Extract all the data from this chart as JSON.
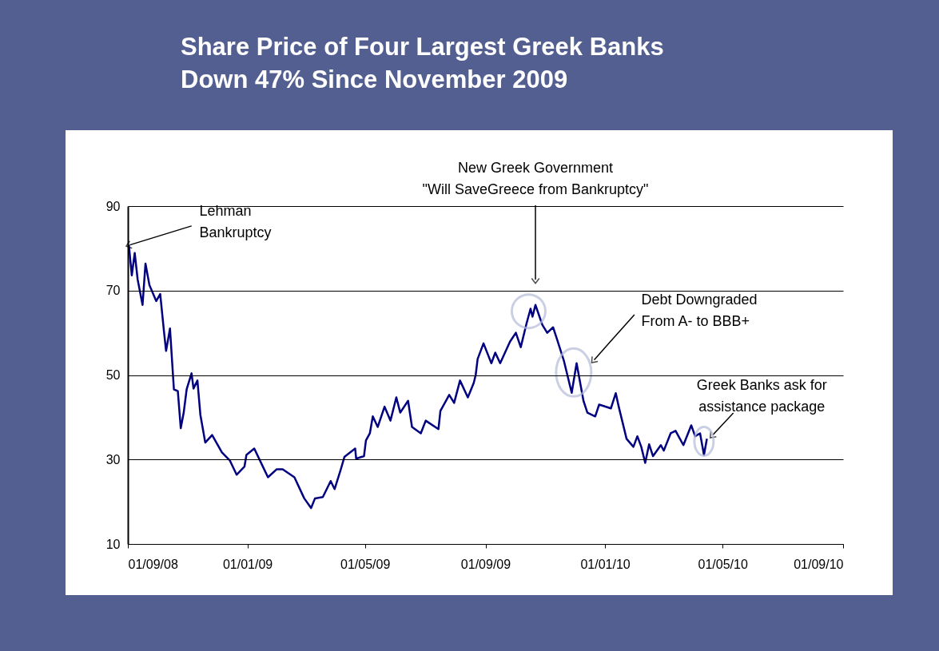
{
  "chart_data": {
    "type": "line",
    "title": "Share Price of Four Largest Greek Banks\nDown 47% Since November 2009",
    "x": [
      "2008-09-02",
      "2008-09-05",
      "2008-09-08",
      "2008-09-11",
      "2008-09-16",
      "2008-09-19",
      "2008-09-23",
      "2008-09-30",
      "2008-10-04",
      "2008-10-08",
      "2008-10-10",
      "2008-10-14",
      "2008-10-18",
      "2008-10-22",
      "2008-10-25",
      "2008-10-28",
      "2008-10-31",
      "2008-11-05",
      "2008-11-07",
      "2008-11-11",
      "2008-11-14",
      "2008-11-19",
      "2008-11-26",
      "2008-12-06",
      "2008-12-14",
      "2008-12-21",
      "2008-12-29",
      "2008-12-31",
      "2009-01-08",
      "2009-01-16",
      "2009-01-22",
      "2009-01-31",
      "2009-02-06",
      "2009-02-18",
      "2009-02-28",
      "2009-03-07",
      "2009-03-11",
      "2009-03-19",
      "2009-03-27",
      "2009-03-31",
      "2009-04-06",
      "2009-04-10",
      "2009-04-21",
      "2009-04-22",
      "2009-04-30",
      "2009-05-02",
      "2009-05-06",
      "2009-05-09",
      "2009-05-14",
      "2009-05-21",
      "2009-05-27",
      "2009-06-02",
      "2009-06-06",
      "2009-06-14",
      "2009-06-18",
      "2009-06-27",
      "2009-07-02",
      "2009-07-15",
      "2009-07-17",
      "2009-07-26",
      "2009-07-31",
      "2009-08-06",
      "2009-08-14",
      "2009-08-20",
      "2009-08-22",
      "2009-08-24",
      "2009-08-30",
      "2009-09-07",
      "2009-09-11",
      "2009-09-16",
      "2009-09-26",
      "2009-10-02",
      "2009-10-07",
      "2009-10-13",
      "2009-10-17",
      "2009-10-19",
      "2009-10-22",
      "2009-10-29",
      "2009-11-03",
      "2009-11-09",
      "2009-11-13",
      "2009-11-20",
      "2009-11-28",
      "2009-12-03",
      "2009-12-10",
      "2009-12-14",
      "2009-12-22",
      "2009-12-26",
      "2010-01-07",
      "2010-01-12",
      "2010-01-15",
      "2010-01-23",
      "2010-01-30",
      "2010-02-03",
      "2010-02-07",
      "2010-02-11",
      "2010-02-15",
      "2010-02-19",
      "2010-02-27",
      "2010-03-02",
      "2010-03-09",
      "2010-03-14",
      "2010-03-22",
      "2010-03-30",
      "2010-04-03",
      "2010-04-08",
      "2010-04-12",
      "2010-04-15"
    ],
    "series": [
      {
        "color": "#000080",
        "values": [
          80.8,
          73.6,
          78.9,
          72.6,
          66.6,
          76.4,
          71.3,
          67.5,
          69.2,
          60,
          55.7,
          61,
          46.6,
          46.2,
          37.4,
          41.1,
          46.6,
          50.4,
          46.8,
          48.7,
          40.6,
          34,
          35.8,
          31.7,
          29.8,
          26.4,
          28.3,
          31.1,
          32.6,
          28.7,
          25.8,
          27.7,
          27.7,
          25.8,
          20.8,
          18.5,
          20.8,
          21.1,
          24.9,
          23,
          27.4,
          30.6,
          32.6,
          30.2,
          30.8,
          34.5,
          36.2,
          40.2,
          37.7,
          42.5,
          39.2,
          44.7,
          41.1,
          43.9,
          37.7,
          36.2,
          39.2,
          37.2,
          41.5,
          45.3,
          43.4,
          48.7,
          44.7,
          48.1,
          50,
          53.8,
          57.5,
          52.8,
          55.3,
          52.8,
          57.9,
          60,
          56.6,
          62.3,
          65.7,
          63.8,
          66.6,
          61.9,
          60,
          61.3,
          58.5,
          53.4,
          45.8,
          52.8,
          43.9,
          41.1,
          40.2,
          43,
          42.1,
          45.7,
          42.5,
          34.9,
          33,
          35.5,
          33,
          29.2,
          33.6,
          30.8,
          33.4,
          32.1,
          36.2,
          36.8,
          33.4,
          38.1,
          35.5,
          36.2,
          31.1,
          34.9
        ]
      }
    ],
    "xlim": [
      "2008-09-01",
      "2010-09-01"
    ],
    "xticks": [
      {
        "value": "2008-09-01",
        "label": "01/09/08"
      },
      {
        "value": "2009-01-01",
        "label": "01/01/09"
      },
      {
        "value": "2009-05-01",
        "label": "01/05/09"
      },
      {
        "value": "2009-09-01",
        "label": "01/09/09"
      },
      {
        "value": "2010-01-01",
        "label": "01/01/10"
      },
      {
        "value": "2010-05-01",
        "label": "01/05/10"
      },
      {
        "value": "2010-09-01",
        "label": "01/09/10"
      }
    ],
    "ylim": [
      10,
      90
    ],
    "yticks": [
      10,
      30,
      50,
      70,
      90
    ],
    "grid": "y",
    "line_style": "solid",
    "marker": "none",
    "annotations": [
      {
        "text": "Lehman\nBankruptcy",
        "x": "2008-09-02",
        "y": 80.8
      },
      {
        "text": "New Greek Government\n\"Will SaveGreece from Bankruptcy\"",
        "x": "2009-10-22",
        "y": 72.6
      },
      {
        "text": "Debt Downgraded\nFrom A- to BBB+",
        "x": "2009-12-21",
        "y": 53.6
      },
      {
        "text": "Greek Banks ask for\nassistance package",
        "x": "2010-04-12",
        "y": 34.3
      }
    ]
  }
}
